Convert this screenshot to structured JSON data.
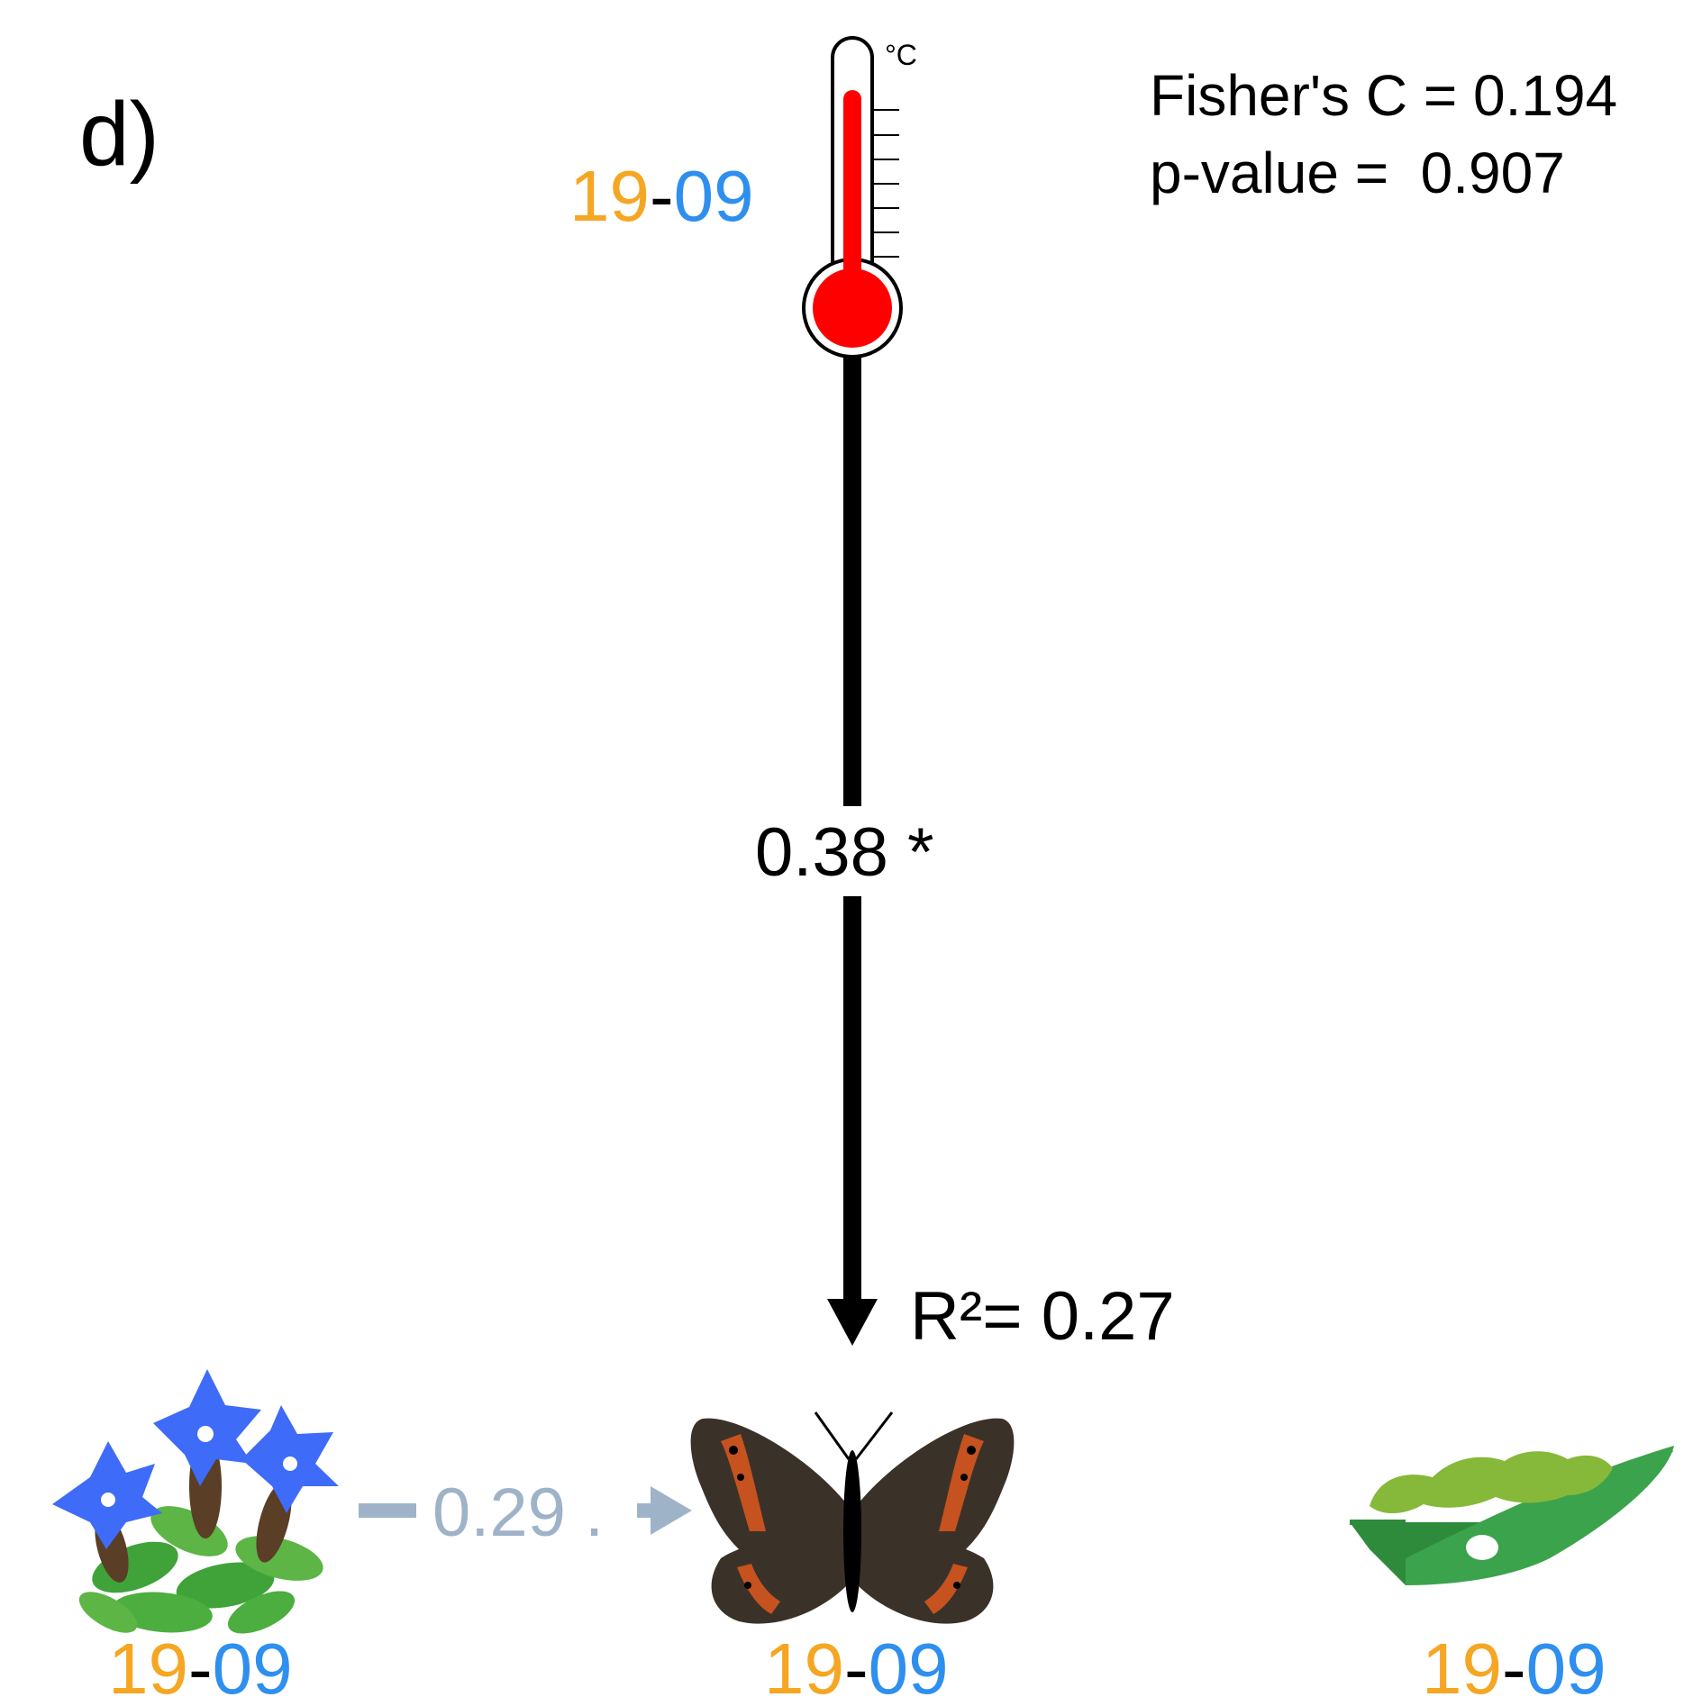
{
  "panel_label": "d)",
  "stats": {
    "fisher_c": "Fisher's C = 0.194",
    "p_value": "p-value =  0.907"
  },
  "temperature": {
    "unit": "°C",
    "period_start": "19",
    "period_sep": "-",
    "period_end": "09"
  },
  "paths": {
    "temperature_to_butterfly": "0.38 *",
    "flower_to_butterfly": "0.29 ."
  },
  "butterfly": {
    "r2": "R²= 0.27",
    "period_start": "19",
    "period_sep": "-",
    "period_end": "09"
  },
  "flower": {
    "period_start": "19",
    "period_sep": "-",
    "period_end": "09"
  },
  "caterpillar": {
    "period_start": "19",
    "period_sep": "-",
    "period_end": "09"
  },
  "colors": {
    "year_start": "#F5A623",
    "year_end": "#2E8FEF",
    "significant_path": "#000000",
    "nonsignificant_path": "#9FB3C8",
    "thermometer_red": "#FF0000"
  },
  "icons": {
    "temperature": "thermometer-icon",
    "flower": "gentian-flower-icon",
    "butterfly": "butterfly-icon",
    "caterpillar": "caterpillar-on-leaf-icon"
  }
}
